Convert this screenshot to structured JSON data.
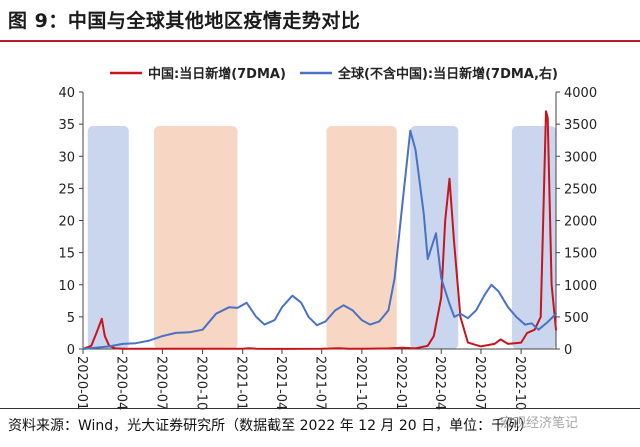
{
  "figure_title": "图 9：中国与全球其他地区疫情走势对比",
  "source_note": "资料来源：Wind，光大证券研究所（数据截至 2022 年 12 月 20 日，单位：千例）",
  "watermark": "宏观经济笔记",
  "colors": {
    "china": "#c8141c",
    "world": "#4a72c4",
    "shade_blue": "#c9d6ee",
    "shade_orange": "#f7d7c3",
    "title_rule": "#b3202b"
  },
  "chart_data": {
    "type": "line",
    "title": "",
    "xlabel": "",
    "ylabel_left": "",
    "ylabel_right": "",
    "x_ticks": [
      "2020-01",
      "2020-04",
      "2020-07",
      "2020-10",
      "2021-01",
      "2021-04",
      "2021-07",
      "2021-10",
      "2022-01",
      "2022-04",
      "2022-07",
      "2022-10"
    ],
    "xlim": [
      "2020-01",
      "2022-12-20"
    ],
    "ylim_left": [
      0,
      40
    ],
    "ylim_right": [
      0,
      4000
    ],
    "y_ticks_left": [
      0,
      5,
      10,
      15,
      20,
      25,
      30,
      35,
      40
    ],
    "y_ticks_right": [
      0,
      500,
      1000,
      1500,
      2000,
      2500,
      3000,
      3500,
      4000
    ],
    "legend_position": "top",
    "series": [
      {
        "name": "中国:当日新增(7DMA)",
        "axis": "left",
        "x": [
          "2020-01-01",
          "2020-01-20",
          "2020-02-01",
          "2020-02-08",
          "2020-02-13",
          "2020-02-20",
          "2020-03-01",
          "2020-03-15",
          "2020-04-01",
          "2020-07-01",
          "2020-10-01",
          "2021-01-01",
          "2021-01-15",
          "2021-02-01",
          "2021-04-01",
          "2021-07-01",
          "2021-08-10",
          "2021-09-01",
          "2021-10-01",
          "2021-12-01",
          "2022-01-01",
          "2022-02-01",
          "2022-03-01",
          "2022-03-15",
          "2022-04-01",
          "2022-04-10",
          "2022-04-20",
          "2022-04-30",
          "2022-05-15",
          "2022-06-01",
          "2022-07-01",
          "2022-08-01",
          "2022-08-15",
          "2022-09-01",
          "2022-10-01",
          "2022-10-15",
          "2022-11-01",
          "2022-11-15",
          "2022-11-27",
          "2022-12-01",
          "2022-12-10",
          "2022-12-20"
        ],
        "values": [
          0,
          0.5,
          2.5,
          3.8,
          4.7,
          2.0,
          0.5,
          0.1,
          0.05,
          0.05,
          0.03,
          0.05,
          0.12,
          0.05,
          0.02,
          0.05,
          0.12,
          0.04,
          0.05,
          0.1,
          0.2,
          0.1,
          0.5,
          2.0,
          8.0,
          20.0,
          26.5,
          17.0,
          5.0,
          1.0,
          0.4,
          0.8,
          1.5,
          0.8,
          1.0,
          2.5,
          3.0,
          5.0,
          37.0,
          36.0,
          10.0,
          3.0
        ]
      },
      {
        "name": "全球(不含中国):当日新增(7DMA,右)",
        "axis": "right",
        "x": [
          "2020-01-01",
          "2020-03-01",
          "2020-04-01",
          "2020-05-01",
          "2020-06-01",
          "2020-07-01",
          "2020-08-01",
          "2020-09-01",
          "2020-10-01",
          "2020-11-01",
          "2020-12-01",
          "2020-12-20",
          "2021-01-10",
          "2021-02-01",
          "2021-02-20",
          "2021-03-15",
          "2021-04-01",
          "2021-04-25",
          "2021-05-15",
          "2021-06-01",
          "2021-06-20",
          "2021-07-10",
          "2021-08-01",
          "2021-08-20",
          "2021-09-10",
          "2021-10-01",
          "2021-10-20",
          "2021-11-10",
          "2021-12-01",
          "2021-12-15",
          "2022-01-01",
          "2022-01-20",
          "2022-02-01",
          "2022-02-20",
          "2022-03-01",
          "2022-03-20",
          "2022-04-01",
          "2022-04-20",
          "2022-05-01",
          "2022-05-15",
          "2022-06-01",
          "2022-06-20",
          "2022-07-10",
          "2022-07-25",
          "2022-08-10",
          "2022-09-01",
          "2022-09-20",
          "2022-10-10",
          "2022-10-25",
          "2022-11-10",
          "2022-12-01",
          "2022-12-20"
        ],
        "values": [
          0,
          40,
          80,
          90,
          130,
          200,
          250,
          260,
          300,
          550,
          650,
          640,
          720,
          500,
          380,
          450,
          650,
          830,
          720,
          500,
          370,
          430,
          600,
          680,
          600,
          450,
          380,
          430,
          600,
          1100,
          2200,
          3400,
          3100,
          2100,
          1400,
          1800,
          1100,
          700,
          500,
          550,
          480,
          600,
          850,
          1000,
          900,
          650,
          500,
          380,
          400,
          300,
          420,
          550
        ]
      }
    ],
    "shaded_regions": [
      {
        "start": "2020-01-12",
        "end": "2020-04-15",
        "color": "blue"
      },
      {
        "start": "2020-06-12",
        "end": "2020-12-20",
        "color": "orange"
      },
      {
        "start": "2021-07-12",
        "end": "2021-12-20",
        "color": "orange"
      },
      {
        "start": "2022-01-20",
        "end": "2022-05-10",
        "color": "blue"
      },
      {
        "start": "2022-09-10",
        "end": "2022-12-20",
        "color": "blue"
      }
    ]
  }
}
